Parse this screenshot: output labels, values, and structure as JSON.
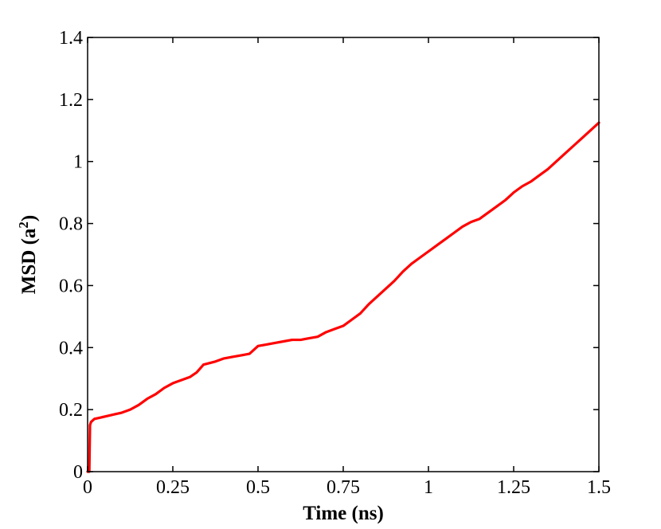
{
  "chart_data": {
    "type": "line",
    "title": "",
    "xlabel": "Time (ns)",
    "ylabel": {
      "prefix": "MSD (a",
      "sup": "2",
      "suffix": ")"
    },
    "xlim": [
      0,
      1.5
    ],
    "ylim": [
      0,
      1.4
    ],
    "xticks": [
      {
        "value": 0,
        "label": "0"
      },
      {
        "value": 0.25,
        "label": "0.25"
      },
      {
        "value": 0.5,
        "label": "0.5"
      },
      {
        "value": 0.75,
        "label": "0.75"
      },
      {
        "value": 1,
        "label": "1"
      },
      {
        "value": 1.25,
        "label": "1.25"
      },
      {
        "value": 1.5,
        "label": "1.5"
      }
    ],
    "yticks": [
      {
        "value": 0,
        "label": "0"
      },
      {
        "value": 0.2,
        "label": "0.2"
      },
      {
        "value": 0.4,
        "label": "0.4"
      },
      {
        "value": 0.6,
        "label": "0.6"
      },
      {
        "value": 0.8,
        "label": "0.8"
      },
      {
        "value": 1,
        "label": "1"
      },
      {
        "value": 1.2,
        "label": "1.2"
      },
      {
        "value": 1.4,
        "label": "1.4"
      }
    ],
    "grid": false,
    "series": [
      {
        "color": "#ff0000",
        "x": [
          0,
          0.005,
          0.007,
          0.01,
          0.02,
          0.04,
          0.06,
          0.08,
          0.1,
          0.125,
          0.15,
          0.175,
          0.2,
          0.225,
          0.25,
          0.275,
          0.3,
          0.32,
          0.34,
          0.375,
          0.4,
          0.425,
          0.45,
          0.475,
          0.5,
          0.525,
          0.55,
          0.575,
          0.6,
          0.625,
          0.65,
          0.675,
          0.7,
          0.725,
          0.75,
          0.775,
          0.8,
          0.825,
          0.85,
          0.875,
          0.9,
          0.925,
          0.95,
          0.975,
          1.0,
          1.025,
          1.05,
          1.075,
          1.1,
          1.125,
          1.15,
          1.175,
          1.2,
          1.225,
          1.25,
          1.275,
          1.3,
          1.325,
          1.35,
          1.375,
          1.4,
          1.425,
          1.45,
          1.475,
          1.5
        ],
        "y": [
          0,
          0.0,
          0.15,
          0.16,
          0.17,
          0.175,
          0.18,
          0.185,
          0.19,
          0.2,
          0.215,
          0.235,
          0.25,
          0.27,
          0.285,
          0.295,
          0.305,
          0.32,
          0.345,
          0.355,
          0.365,
          0.37,
          0.375,
          0.38,
          0.405,
          0.41,
          0.415,
          0.42,
          0.425,
          0.425,
          0.43,
          0.435,
          0.45,
          0.46,
          0.47,
          0.49,
          0.51,
          0.54,
          0.565,
          0.59,
          0.615,
          0.645,
          0.67,
          0.69,
          0.71,
          0.73,
          0.75,
          0.77,
          0.79,
          0.805,
          0.815,
          0.835,
          0.855,
          0.875,
          0.9,
          0.92,
          0.935,
          0.955,
          0.975,
          1.0,
          1.025,
          1.05,
          1.075,
          1.1,
          1.125
        ]
      }
    ]
  }
}
